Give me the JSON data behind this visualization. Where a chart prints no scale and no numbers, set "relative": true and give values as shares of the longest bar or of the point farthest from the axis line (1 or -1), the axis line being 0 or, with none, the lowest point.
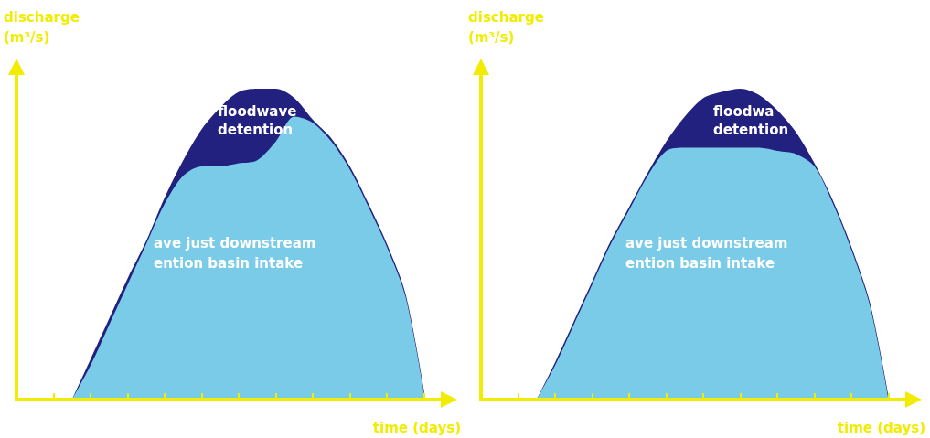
{
  "chart_data": [
    {
      "type": "area",
      "xlabel": "time (days)",
      "ylabel": "discharge\n(m³/s)",
      "relative": true,
      "categories": [
        null,
        null,
        null,
        null,
        null,
        null,
        null,
        null,
        null,
        null,
        null,
        null,
        null,
        null,
        null,
        null,
        null,
        null,
        null,
        null,
        null,
        null,
        null,
        null
      ],
      "series": [
        {
          "color": "#23217f",
          "values": [
            null,
            null,
            null,
            0,
            0.13,
            0.26,
            0.39,
            0.51,
            0.65,
            0.77,
            0.87,
            0.94,
            0.99,
            1,
            1,
            0.97,
            0.9,
            0.84,
            0.75,
            0.63,
            0.5,
            0.34,
            0.03,
            null
          ]
        },
        {
          "color": "#7acbe8",
          "values": [
            null,
            null,
            null,
            0,
            0.11,
            0.24,
            0.37,
            0.5,
            0.63,
            0.72,
            0.75,
            0.75,
            0.76,
            0.77,
            0.83,
            0.91,
            0.89,
            0.83,
            0.74,
            0.62,
            0.49,
            0.33,
            0.02,
            null
          ]
        }
      ],
      "annotations": [
        "floodwave\ndetention",
        "ave just downstream\nention basin intake"
      ]
    },
    {
      "type": "area",
      "xlabel": "time (days)",
      "ylabel": "discharge\n(m³/s)",
      "relative": true,
      "categories": [
        null,
        null,
        null,
        null,
        null,
        null,
        null,
        null,
        null,
        null,
        null,
        null,
        null,
        null,
        null,
        null,
        null,
        null,
        null,
        null,
        null,
        null,
        null,
        null
      ],
      "series": [
        {
          "color": "#23217f",
          "values": [
            null,
            null,
            null,
            0,
            0.12,
            0.25,
            0.38,
            0.51,
            0.62,
            0.73,
            0.83,
            0.91,
            0.97,
            0.99,
            1,
            0.98,
            0.93,
            0.86,
            0.76,
            0.64,
            0.49,
            0.31,
            0.01,
            null
          ]
        },
        {
          "color": "#7acbe8",
          "values": [
            null,
            null,
            null,
            0,
            0.11,
            0.24,
            0.37,
            0.5,
            0.61,
            0.72,
            0.8,
            0.81,
            0.81,
            0.81,
            0.81,
            0.81,
            0.8,
            0.79,
            0.75,
            0.63,
            0.48,
            0.3,
            0,
            null
          ]
        }
      ],
      "annotations": [
        "floodwa\ndetention",
        "ave just downstream\nention basin intake"
      ]
    }
  ]
}
